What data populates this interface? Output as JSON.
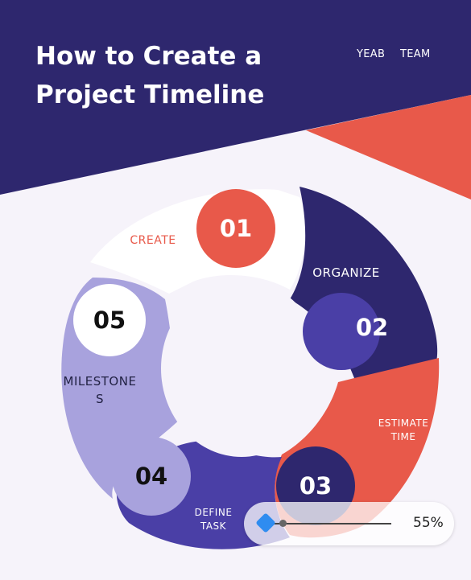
{
  "header": {
    "title_line1": "How to Create a",
    "title_line2": "Project Timeline",
    "brand_word1": "YEAB",
    "brand_word2": "TEAM"
  },
  "steps": [
    {
      "number": "01",
      "label": "CREATE",
      "color": "#e8594a"
    },
    {
      "number": "02",
      "label": "ORGANIZE",
      "color": "#2e276e"
    },
    {
      "number": "03",
      "label_line1": "ESTIMATE",
      "label_line2": "TIME",
      "color": "#e8594a"
    },
    {
      "number": "04",
      "label_line1": "DEFINE",
      "label_line2": "TASK",
      "color": "#4a3fa6"
    },
    {
      "number": "05",
      "label_line1": "MILESTONE",
      "label_line2": "S",
      "color": "#a8a2dd"
    }
  ],
  "zoom": {
    "value_label": "55%",
    "level": 0.55
  },
  "colors": {
    "navy": "#2e276e",
    "coral": "#e8594a",
    "indigo": "#4a3fa6",
    "lavender": "#a8a2dd",
    "page_bg": "#f6f3fa"
  }
}
